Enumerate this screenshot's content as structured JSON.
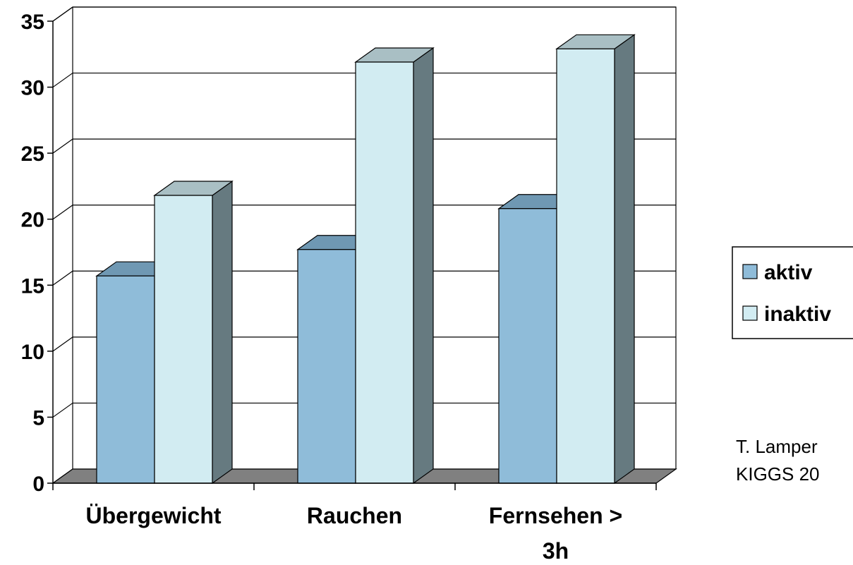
{
  "chart_data": {
    "type": "bar",
    "style": "3d-clustered-column",
    "categories": [
      "Übergewicht",
      "Rauchen",
      "Fernsehen >\n3h"
    ],
    "series": [
      {
        "name": "aktiv",
        "values": [
          15.7,
          17.7,
          20.8
        ],
        "color": "#8fbcd9"
      },
      {
        "name": "inaktiv",
        "values": [
          21.8,
          31.9,
          32.9
        ],
        "color": "#d2ecf2"
      }
    ],
    "ylim": [
      0,
      35
    ],
    "yticks": [
      0,
      5,
      10,
      15,
      20,
      25,
      30,
      35
    ],
    "grid": true,
    "legend": "right"
  },
  "source_note": {
    "line1": "T. Lamper",
    "line2": "KIGGS 20"
  }
}
